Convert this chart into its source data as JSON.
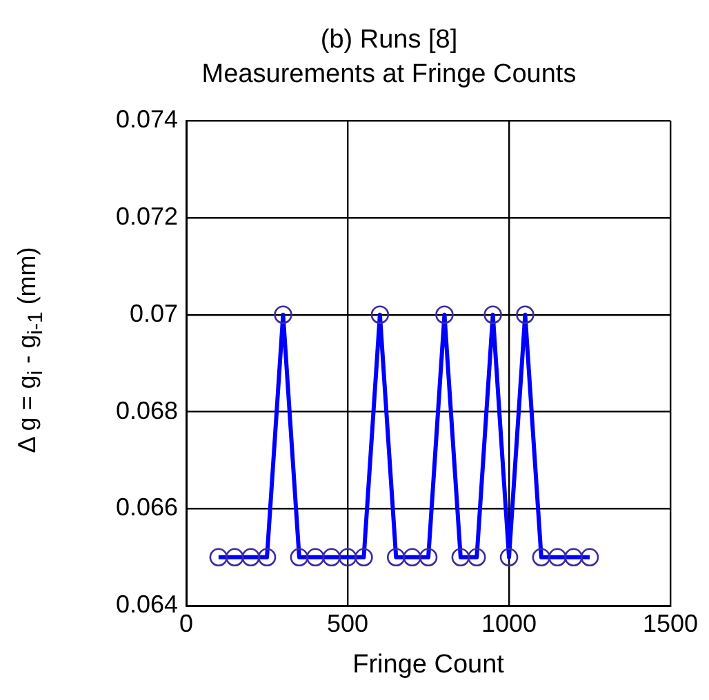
{
  "chart_data": {
    "type": "line",
    "title": "(b) Runs [8]",
    "subtitle": "Measurements at Fringe Counts",
    "xlabel": "Fringe Count",
    "ylabel": "Δ g = g$_{i}$ - g$_{i-1}$  (mm)",
    "x": [
      100,
      150,
      200,
      250,
      300,
      350,
      400,
      450,
      500,
      550,
      600,
      650,
      700,
      750,
      800,
      850,
      900,
      950,
      1000,
      1050,
      1100,
      1150,
      1200,
      1250
    ],
    "series": [
      {
        "color": "#0000ff",
        "values": [
          0.065,
          0.065,
          0.065,
          0.065,
          0.07,
          0.065,
          0.065,
          0.065,
          0.065,
          0.065,
          0.07,
          0.065,
          0.065,
          0.065,
          0.07,
          0.065,
          0.065,
          0.07,
          0.065,
          0.07,
          0.065,
          0.065,
          0.065,
          0.065
        ]
      }
    ],
    "xlim": [
      0,
      1500
    ],
    "xticks": [
      0,
      500,
      1000,
      1500
    ],
    "ylim": [
      0.064,
      0.074
    ],
    "yticks": [
      0.064,
      0.066,
      0.068,
      0.07,
      0.072,
      0.074
    ],
    "grid": true,
    "legend": false,
    "marker": "circle",
    "line_style": "solid"
  }
}
